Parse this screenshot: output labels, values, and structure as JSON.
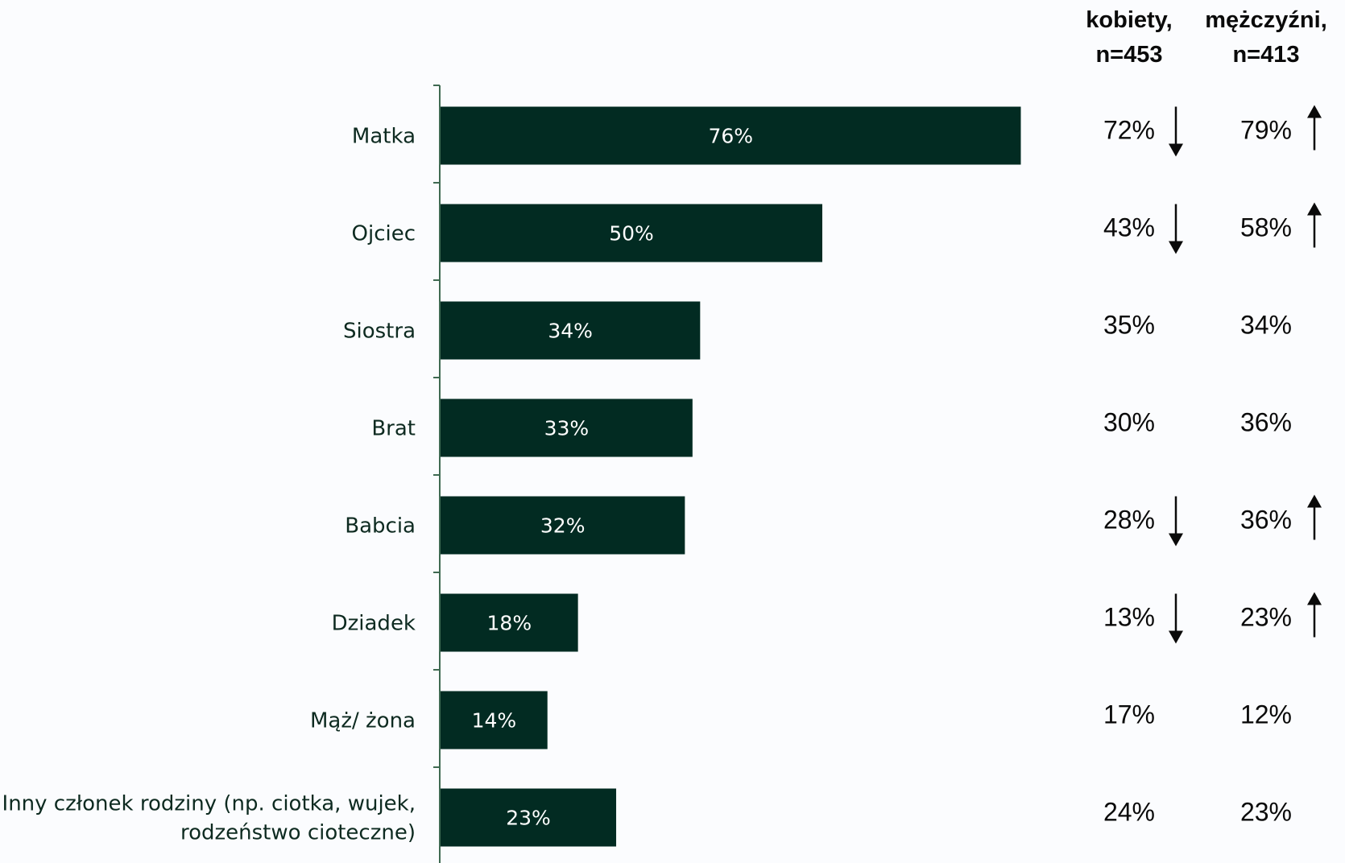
{
  "chart_data": {
    "type": "bar",
    "orientation": "horizontal",
    "categories": [
      [
        "Matka"
      ],
      [
        "Ojciec"
      ],
      [
        "Siostra"
      ],
      [
        "Brat"
      ],
      [
        "Babcia"
      ],
      [
        "Dziadek"
      ],
      [
        "Mąż/ żona"
      ],
      [
        "Inny członek rodziny (np. ciotka, wujek,",
        "rodzeństwo cioteczne)"
      ]
    ],
    "values": [
      76,
      50,
      34,
      33,
      32,
      18,
      14,
      23
    ],
    "value_labels": [
      "76%",
      "50%",
      "34%",
      "33%",
      "32%",
      "18%",
      "14%",
      "23%"
    ],
    "xlim": [
      0,
      100
    ],
    "grid": false,
    "bar_color": "#022b22",
    "comparison_columns": [
      {
        "header": [
          "kobiety,",
          "n=453"
        ],
        "values": [
          "72%",
          "43%",
          "35%",
          "30%",
          "28%",
          "13%",
          "17%",
          "24%"
        ],
        "trend": [
          "down",
          "down",
          null,
          null,
          "down",
          "down",
          null,
          null
        ]
      },
      {
        "header": [
          "mężczyźni,",
          "n=413"
        ],
        "values": [
          "79%",
          "58%",
          "34%",
          "36%",
          "36%",
          "23%",
          "12%",
          "23%"
        ],
        "trend": [
          "up",
          "up",
          null,
          null,
          "up",
          "up",
          null,
          null
        ]
      }
    ],
    "trend_icons": {
      "down": "arrow-down-icon",
      "up": "arrow-up-icon"
    }
  }
}
